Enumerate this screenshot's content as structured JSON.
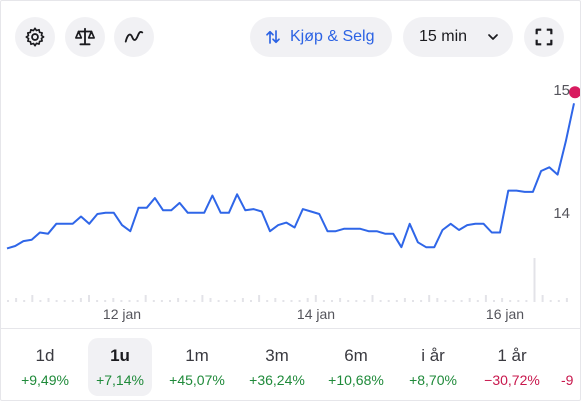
{
  "toolbar": {
    "settings_icon": "gear-icon",
    "compare_icon": "scale-icon",
    "indicator_icon": "wave-icon",
    "trade_label": "Kjøp & Selg",
    "interval_value": "15 min",
    "fullscreen_icon": "fullscreen-icon"
  },
  "chart_data": {
    "type": "line",
    "y_ticks": [
      "15",
      "14"
    ],
    "x_ticks": [
      "12 jan",
      "14 jan",
      "16 jan"
    ],
    "series": [
      {
        "values": [
          13.72,
          13.74,
          13.78,
          13.79,
          13.85,
          13.84,
          13.92,
          13.92,
          13.92,
          13.98,
          13.92,
          14.0,
          14.01,
          14.01,
          13.91,
          13.86,
          14.05,
          14.05,
          14.13,
          14.03,
          14.03,
          14.09,
          14.01,
          14.01,
          14.01,
          14.15,
          14.01,
          14.01,
          14.16,
          14.03,
          14.04,
          14.02,
          13.86,
          13.91,
          13.93,
          13.89,
          14.04,
          14.02,
          14.0,
          13.86,
          13.86,
          13.88,
          13.88,
          13.88,
          13.86,
          13.86,
          13.84,
          13.84,
          13.73,
          13.92,
          13.77,
          13.73,
          13.73,
          13.87,
          13.92,
          13.87,
          13.91,
          13.92,
          13.92,
          13.85,
          13.85,
          14.19,
          14.19,
          14.18,
          14.18,
          14.35,
          14.38,
          14.32,
          14.59,
          14.9
        ]
      }
    ],
    "highlight_color": "#d81b60",
    "line_color": "#2f66e8"
  },
  "periods": [
    {
      "label": "1d",
      "change": "+9,49%",
      "trend": "pos",
      "active": false
    },
    {
      "label": "1u",
      "change": "+7,14%",
      "trend": "pos",
      "active": true
    },
    {
      "label": "1m",
      "change": "+45,07%",
      "trend": "pos",
      "active": false
    },
    {
      "label": "3m",
      "change": "+36,24%",
      "trend": "pos",
      "active": false
    },
    {
      "label": "6m",
      "change": "+10,68%",
      "trend": "pos",
      "active": false
    },
    {
      "label": "i år",
      "change": "+8,70%",
      "trend": "pos",
      "active": false
    },
    {
      "label": "1 år",
      "change": "−30,72%",
      "trend": "neg",
      "active": false
    },
    {
      "label": "",
      "change": "-9",
      "trend": "neg",
      "active": false
    }
  ]
}
